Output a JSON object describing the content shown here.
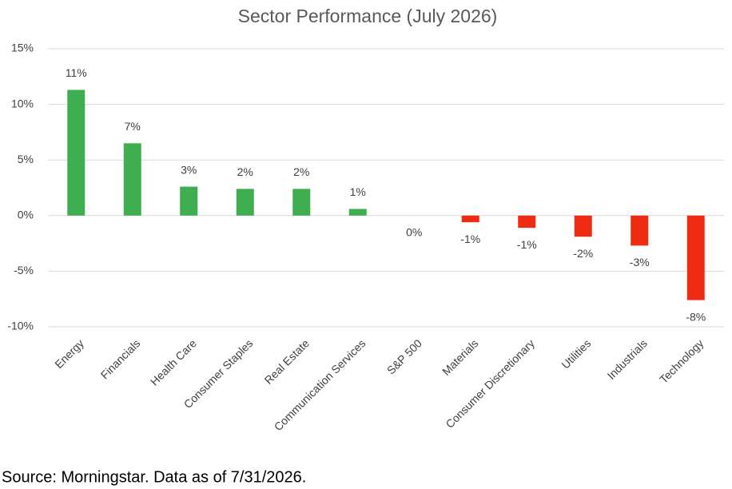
{
  "chart_data": {
    "type": "bar",
    "title": "Sector Performance (July 2026)",
    "categories": [
      "Energy",
      "Financials",
      "Health Care",
      "Consumer Staples",
      "Real Estate",
      "Communication Services",
      "S&P 500",
      "Materials",
      "Consumer Discretionary",
      "Utilities",
      "Industrials",
      "Technology"
    ],
    "values": [
      11.3,
      6.5,
      2.6,
      2.4,
      2.4,
      0.6,
      0,
      -0.6,
      -1.1,
      -1.9,
      -2.7,
      -7.6
    ],
    "value_labels": [
      "11%",
      "7%",
      "3%",
      "2%",
      "2%",
      "1%",
      "0%",
      "-1%",
      "-1%",
      "-2%",
      "-3%",
      "-8%"
    ],
    "positive_color": "#3fae50",
    "negative_color": "#ee2c11",
    "ylim": [
      -10,
      15
    ],
    "yticks": [
      {
        "value": -10,
        "label": "-10%"
      },
      {
        "value": -5,
        "label": "-5%"
      },
      {
        "value": 0,
        "label": "0%"
      },
      {
        "value": 5,
        "label": "5%"
      },
      {
        "value": 10,
        "label": "10%"
      },
      {
        "value": 15,
        "label": "15%"
      }
    ],
    "grid": true,
    "source": "Source: Morningstar. Data as of 7/31/2026."
  }
}
